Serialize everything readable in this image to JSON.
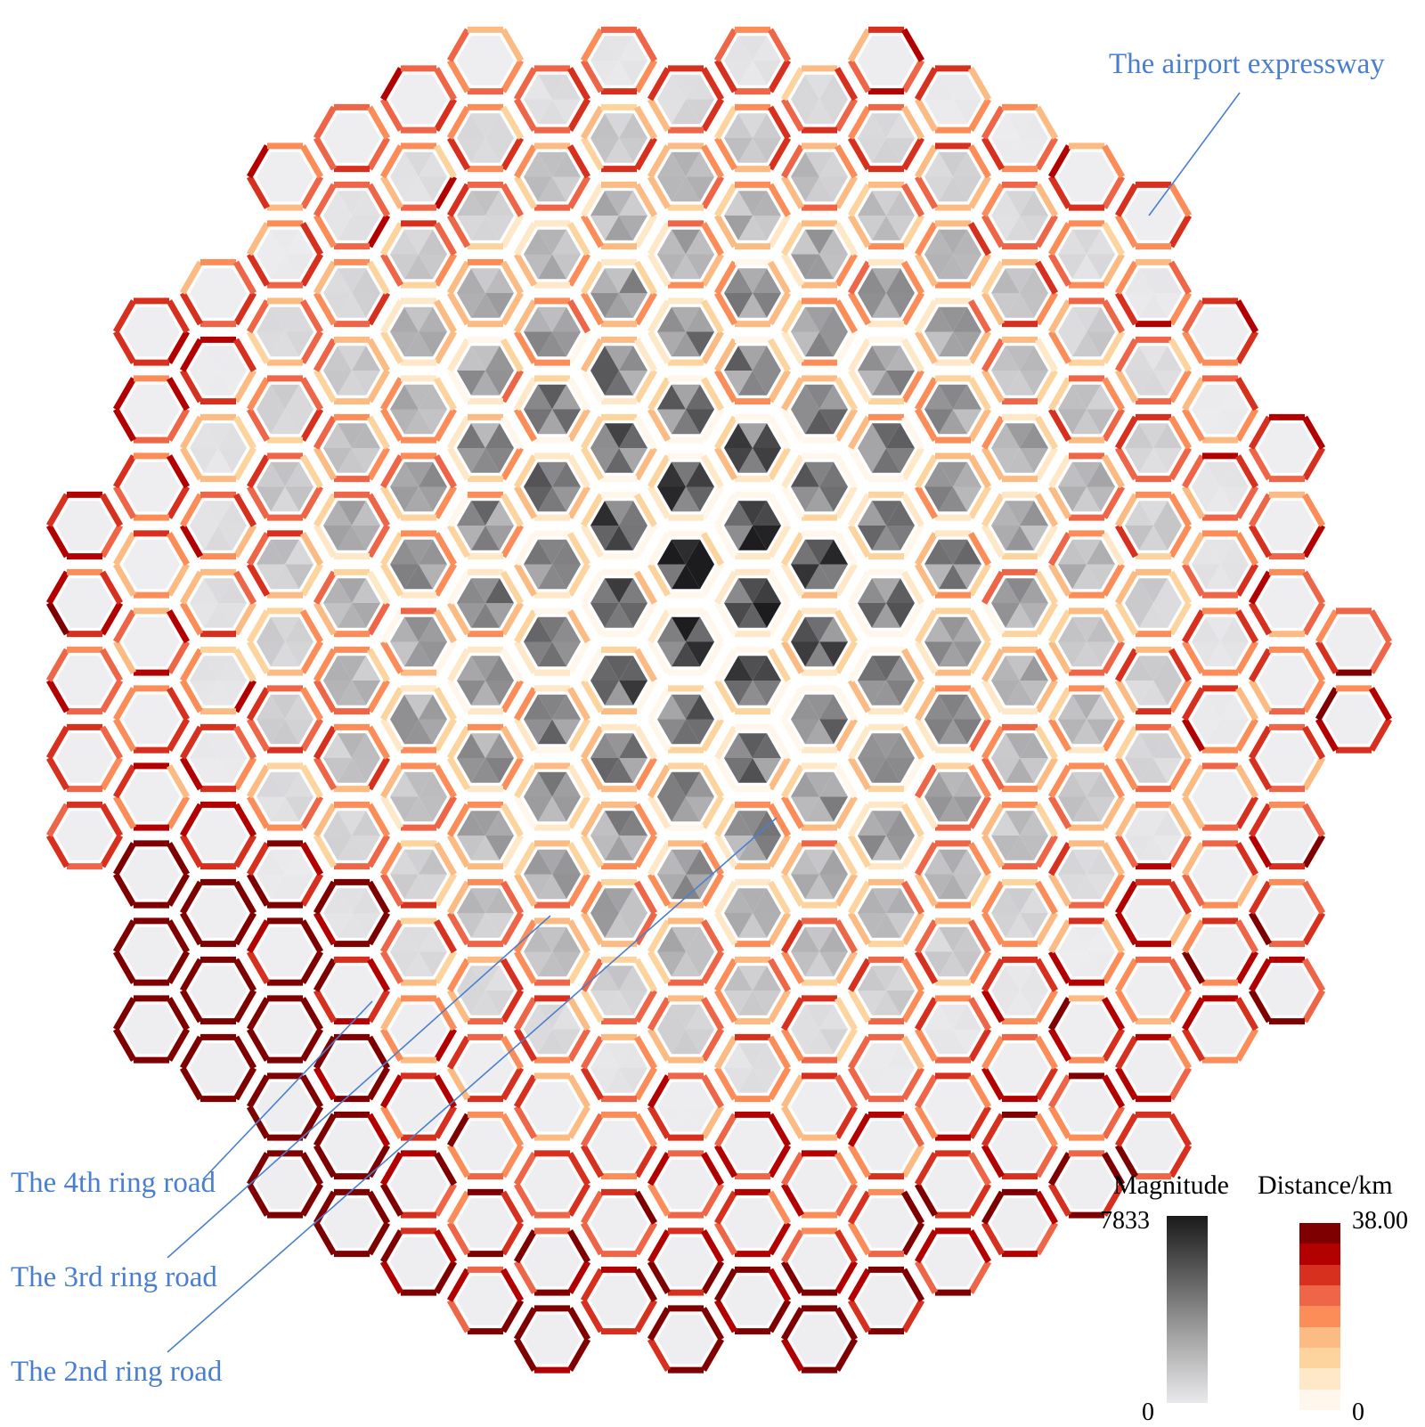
{
  "annotations": {
    "airport": "The airport expressway",
    "ring4": "The 4th ring road",
    "ring3": "The 3rd ring road",
    "ring2": "The 2nd ring road"
  },
  "legend": {
    "magnitude": {
      "title": "Magnitude",
      "max": "7833",
      "min": "0"
    },
    "distance": {
      "title": "Distance/km",
      "max": "38.00",
      "min": "0",
      "colors": [
        "#7f0000",
        "#b30000",
        "#d7301f",
        "#ef6548",
        "#fc8d59",
        "#fdbb84",
        "#fdd49e",
        "#fee8c8",
        "#fff7ec"
      ]
    }
  },
  "colors": {
    "annotation": "#4a7fcf",
    "background": "#ffffff"
  }
}
